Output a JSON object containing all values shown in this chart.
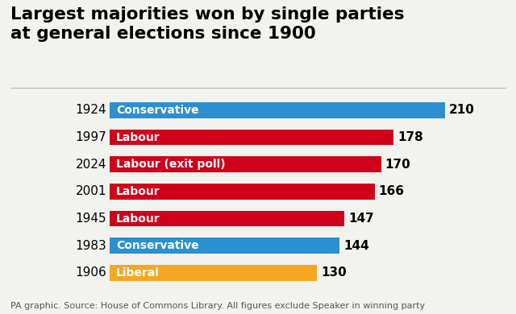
{
  "title": "Largest majorities won by single parties\nat general elections since 1900",
  "years": [
    "1924",
    "1997",
    "2024",
    "2001",
    "1945",
    "1983",
    "1906"
  ],
  "labels": [
    "Conservative",
    "Labour",
    "Labour (exit poll)",
    "Labour",
    "Labour",
    "Conservative",
    "Liberal"
  ],
  "values": [
    210,
    178,
    170,
    166,
    147,
    144,
    130
  ],
  "colors": [
    "#2B8FD0",
    "#D0021B",
    "#D0021B",
    "#D0021B",
    "#D0021B",
    "#2B8FD0",
    "#F5A623"
  ],
  "footnote": "PA graphic. Source: House of Commons Library. All figures exclude Speaker in winning party",
  "bg_color": "#F2F2EE",
  "title_fontsize": 15.5,
  "bar_label_fontsize": 10,
  "value_fontsize": 11,
  "year_fontsize": 11,
  "footnote_fontsize": 8,
  "xlim_max": 240
}
